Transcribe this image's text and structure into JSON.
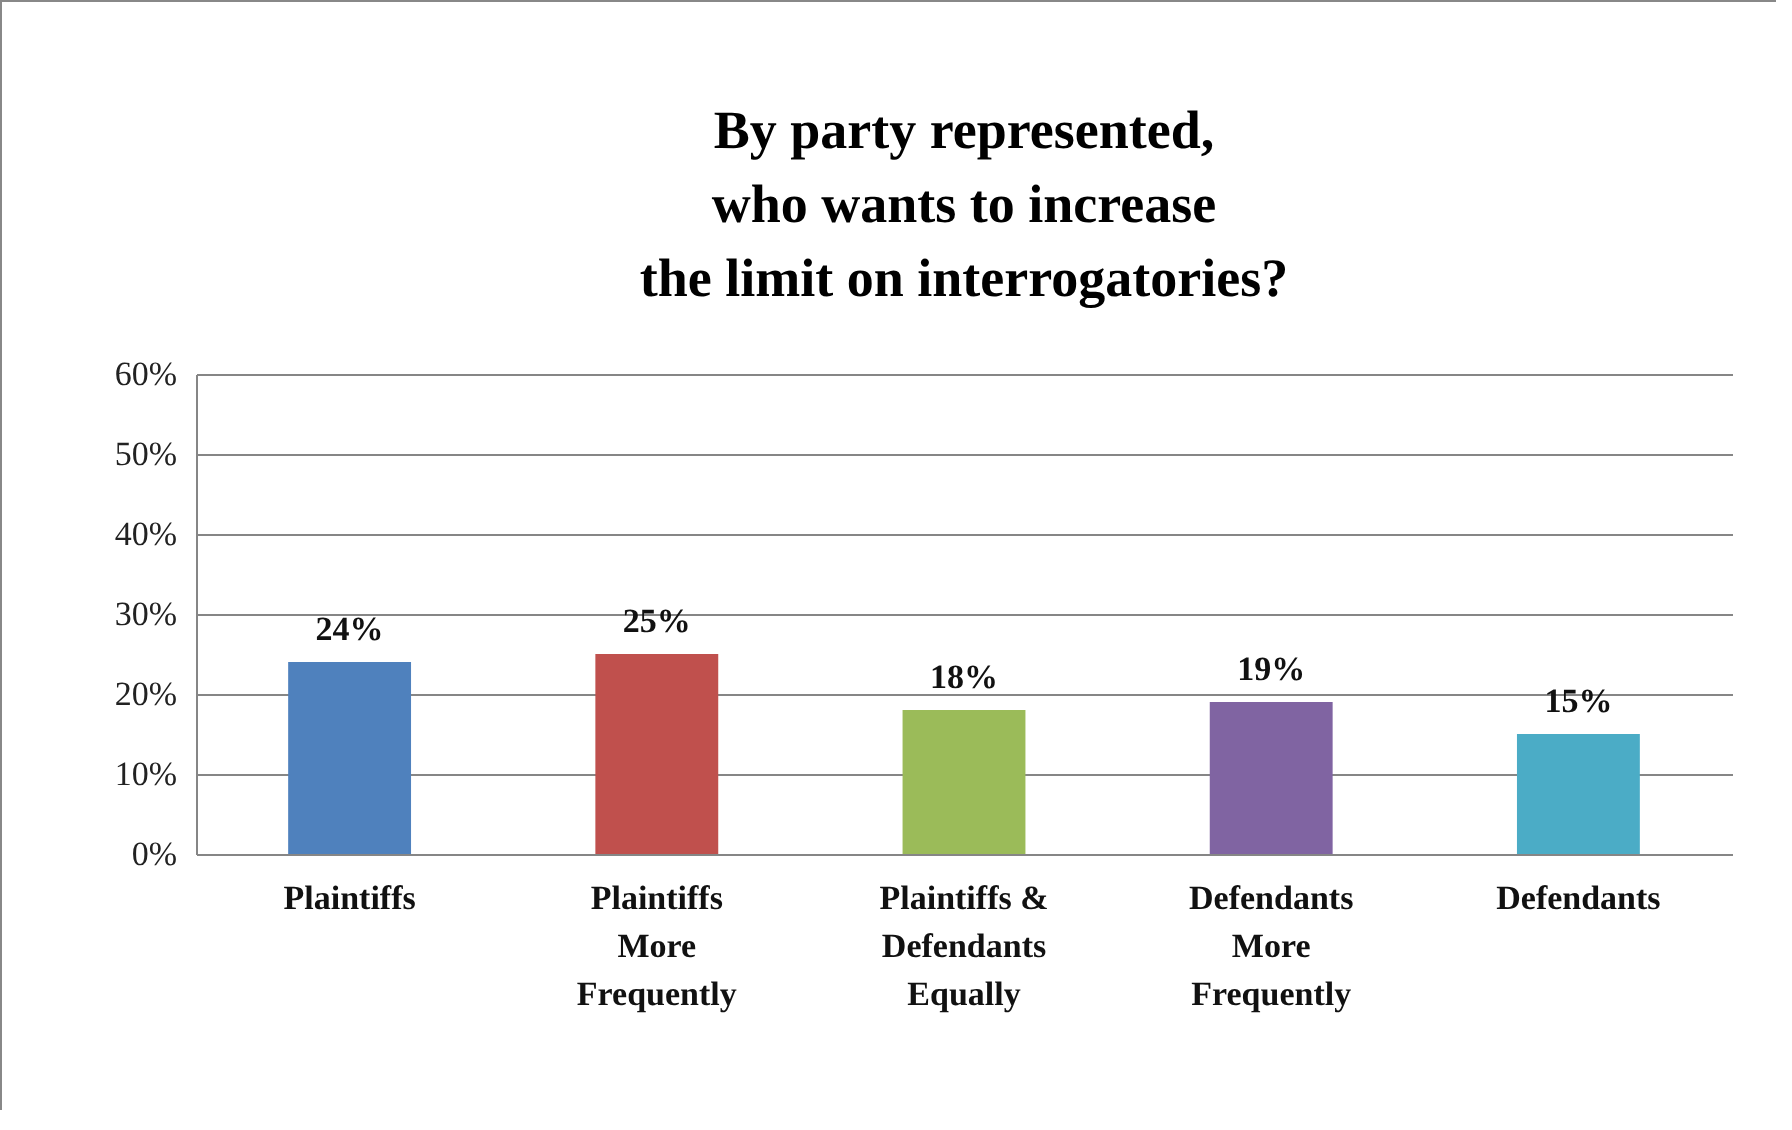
{
  "chart_data": {
    "type": "bar",
    "title": "By party represented,\nwho wants to increase\nthe limit on interrogatories?",
    "categories": [
      "Plaintiffs",
      "Plaintiffs More Frequently",
      "Plaintiffs & Defendants Equally",
      "Defendants More Frequently",
      "Defendants"
    ],
    "values": [
      24,
      25,
      18,
      19,
      15
    ],
    "colors": [
      "#4f81bd",
      "#c0504d",
      "#9bbb59",
      "#8064a2",
      "#4bacc6"
    ],
    "value_labels": [
      "24%",
      "25%",
      "18%",
      "19%",
      "15%"
    ],
    "ylim": [
      0,
      60
    ],
    "yticks": [
      {
        "value": 0,
        "label": "0%"
      },
      {
        "value": 10,
        "label": "10%"
      },
      {
        "value": 20,
        "label": "20%"
      },
      {
        "value": 30,
        "label": "30%"
      },
      {
        "value": 40,
        "label": "40%"
      },
      {
        "value": 50,
        "label": "50%"
      },
      {
        "value": 60,
        "label": "60%"
      }
    ],
    "grid": "y"
  }
}
